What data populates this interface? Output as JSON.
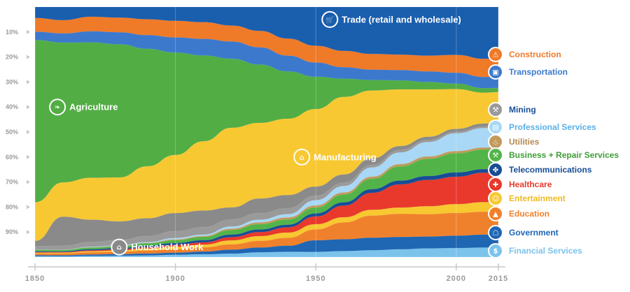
{
  "chart_data": {
    "type": "area",
    "stacked": true,
    "percent": true,
    "x": [
      1850,
      1860,
      1870,
      1880,
      1890,
      1900,
      1910,
      1920,
      1930,
      1940,
      1950,
      1960,
      1970,
      1980,
      1990,
      2000,
      2010,
      2015
    ],
    "x_ticks": [
      "1850",
      "1900",
      "1950",
      "2000",
      "2015"
    ],
    "y_ticks": [
      "10%",
      "20%",
      "30%",
      "40%",
      "50%",
      "60%",
      "70%",
      "80%",
      "90%"
    ],
    "ylim": [
      0,
      100
    ],
    "grid": true,
    "series": [
      {
        "name": "Financial Services",
        "color": "#7cc3ec",
        "label_side": "right",
        "icon": "bank-note-icon",
        "values": [
          0.3,
          0.3,
          0.4,
          0.5,
          0.6,
          0.8,
          1.0,
          1.3,
          1.8,
          2.0,
          2.0,
          2.3,
          2.6,
          3.0,
          3.3,
          3.3,
          3.4,
          3.5
        ]
      },
      {
        "name": "Government",
        "color": "#1f66b3",
        "label_side": "right",
        "icon": "government-building-icon",
        "values": [
          0.4,
          0.4,
          0.5,
          0.6,
          0.7,
          0.8,
          1.0,
          1.5,
          1.8,
          2.3,
          4.5,
          4.6,
          4.8,
          4.8,
          4.5,
          4.5,
          4.6,
          4.7
        ]
      },
      {
        "name": "Education",
        "color": "#f0812c",
        "label_side": "right",
        "icon": "graduation-cap-icon",
        "values": [
          0.6,
          0.7,
          0.8,
          0.9,
          1.1,
          1.3,
          1.5,
          2.0,
          2.5,
          3.0,
          4.2,
          6.5,
          8.5,
          9.0,
          8.5,
          8.3,
          8.2,
          8.2
        ]
      },
      {
        "name": "Entertainment",
        "color": "#f7c830",
        "label_side": "right",
        "icon": "entertainment-icon",
        "values": [
          0.3,
          0.3,
          0.4,
          0.5,
          0.7,
          0.8,
          1.0,
          1.5,
          1.8,
          2.0,
          2.0,
          2.0,
          2.2,
          2.4,
          3.0,
          3.2,
          3.4,
          3.5
        ]
      },
      {
        "name": "Healthcare",
        "color": "#e8392c",
        "label_side": "right",
        "icon": "health-cross-icon",
        "values": [
          0.2,
          0.2,
          0.3,
          0.4,
          0.5,
          0.7,
          0.8,
          1.2,
          1.5,
          2.0,
          3.0,
          4.5,
          6.5,
          9.0,
          10.0,
          10.0,
          10.5,
          10.5
        ]
      },
      {
        "name": "Telecommunications",
        "color": "#174d96",
        "label_side": "right",
        "icon": "satellite-icon",
        "values": [
          0.3,
          0.3,
          0.4,
          0.5,
          0.6,
          0.7,
          0.8,
          1.0,
          1.0,
          1.0,
          1.2,
          1.3,
          1.4,
          1.5,
          1.5,
          1.6,
          1.3,
          1.2
        ]
      },
      {
        "name": "Business + Repair Services",
        "color": "#52b448",
        "label_side": "right",
        "icon": "repair-tools-icon",
        "values": [
          0.5,
          0.5,
          0.6,
          0.7,
          0.8,
          1.0,
          1.2,
          1.7,
          2.0,
          2.0,
          2.3,
          3.0,
          4.0,
          5.5,
          6.5,
          7.0,
          7.0,
          7.2
        ]
      },
      {
        "name": "Utilities",
        "color": "#c29a5b",
        "label_side": "right",
        "icon": "faucet-icon",
        "values": [
          0.0,
          0.0,
          0.1,
          0.1,
          0.2,
          0.3,
          0.3,
          0.5,
          0.7,
          0.8,
          0.8,
          0.8,
          0.8,
          0.9,
          0.9,
          0.8,
          0.7,
          0.7
        ]
      },
      {
        "name": "Professional Services",
        "color": "#a8d8f5",
        "label_side": "right",
        "icon": "briefcase-icon",
        "values": [
          0.1,
          0.1,
          0.2,
          0.2,
          0.3,
          0.5,
          0.5,
          0.8,
          1.0,
          1.2,
          2.0,
          2.5,
          3.5,
          4.5,
          5.5,
          6.5,
          7.0,
          7.0
        ]
      },
      {
        "name": "Mining",
        "color": "#9a9a9a",
        "label_side": "right",
        "icon": "pickaxe-icon",
        "values": [
          1.2,
          1.5,
          1.7,
          2.0,
          2.2,
          2.5,
          2.7,
          2.7,
          2.5,
          2.3,
          1.8,
          1.3,
          1.0,
          1.0,
          0.8,
          0.6,
          0.6,
          0.6
        ]
      },
      {
        "name": "Household Work",
        "color": "#8a8a8a",
        "label_side": "inside",
        "icon": "house-icon",
        "label_at": 1880,
        "label_y": 4,
        "values": [
          2.0,
          11.0,
          8.0,
          7.0,
          6.5,
          6.5,
          6.0,
          4.5,
          5.5,
          5.0,
          3.5,
          3.2,
          2.5,
          1.5,
          1.2,
          1.0,
          1.0,
          1.0
        ]
      },
      {
        "name": "Manufacturing",
        "color": "#f8c832",
        "label_side": "inside",
        "icon": "factory-icon",
        "label_at": 1945,
        "label_y": 40,
        "values": [
          14.0,
          13.0,
          15.0,
          16.5,
          19.0,
          21.0,
          25.0,
          30.0,
          28.5,
          29.0,
          30.0,
          30.0,
          26.0,
          22.0,
          18.0,
          14.5,
          11.0,
          11.0
        ]
      },
      {
        "name": "Agriculture",
        "color": "#52ad45",
        "label_side": "inside",
        "icon": "wheat-icon",
        "label_at": 1858,
        "label_y": 60,
        "values": [
          59.0,
          53.0,
          48.5,
          50.0,
          43.0,
          37.0,
          31.0,
          26.0,
          22.0,
          18.0,
          12.5,
          7.0,
          4.0,
          3.5,
          2.8,
          2.0,
          1.6,
          1.5
        ]
      },
      {
        "name": "Transportation",
        "color": "#3c79cc",
        "label_side": "right",
        "icon": "truck-icon",
        "values": [
          3.0,
          3.5,
          4.0,
          4.5,
          5.0,
          5.5,
          6.0,
          6.5,
          6.5,
          6.0,
          5.5,
          4.5,
          4.0,
          4.0,
          4.0,
          4.0,
          4.0,
          4.0
        ]
      },
      {
        "name": "Construction",
        "color": "#ef7a28",
        "label_side": "right",
        "icon": "crane-icon",
        "values": [
          5.0,
          5.0,
          5.2,
          5.5,
          5.8,
          6.0,
          6.0,
          6.0,
          6.2,
          6.5,
          6.5,
          6.3,
          6.0,
          6.0,
          6.0,
          6.5,
          6.5,
          6.5
        ]
      },
      {
        "name": "Trade (retail and wholesale)",
        "color": "#1a5eae",
        "label_side": "inside",
        "icon": "cart-icon",
        "label_at": 1955,
        "label_y": 95,
        "values": [
          4.0,
          5.0,
          3.5,
          4.0,
          4.5,
          5.0,
          5.5,
          7.0,
          9.0,
          12.0,
          15.0,
          17.0,
          18.0,
          18.5,
          18.5,
          17.5,
          18.5,
          18.5
        ]
      }
    ]
  }
}
